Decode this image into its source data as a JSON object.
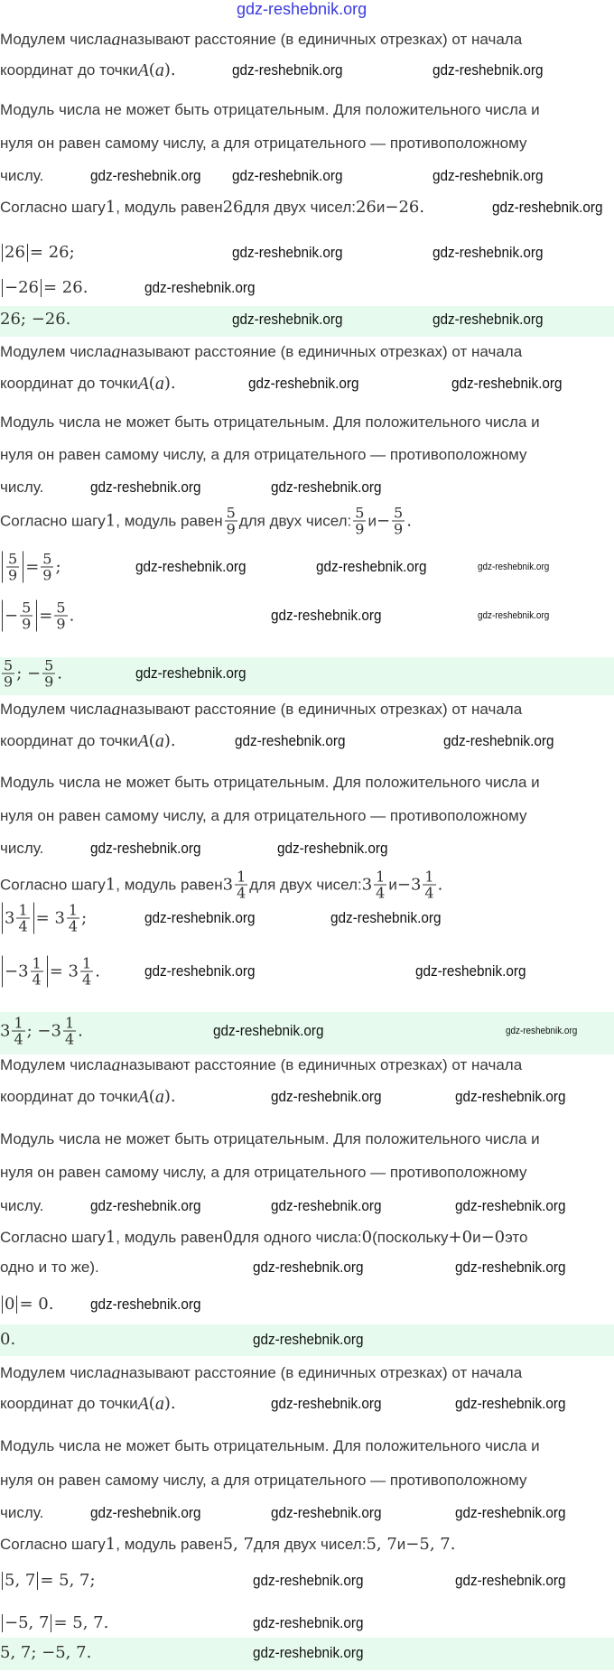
{
  "watermark": "gdz-reshebnik.org",
  "colors": {
    "answer_band": "#e6fbee",
    "top_watermark": "#3b3be0"
  },
  "intro": [
    [
      {
        "t": "Модулем числа "
      },
      {
        "mi": "a"
      },
      {
        "t": " называют расстояние (в единичных отрезках) от начала"
      }
    ],
    [
      {
        "t": "координат до точки "
      },
      {
        "mi": "A"
      },
      {
        "m": "("
      },
      {
        "mi": "a"
      },
      {
        "m": ")."
      }
    ],
    [
      {
        "t": "Модуль числа не может быть отрицательным. Для положительного числа и"
      }
    ],
    [
      {
        "t": "нуля он равен самому числу, а для отрицательного — противоположному"
      }
    ],
    [
      {
        "t": "числу."
      }
    ]
  ],
  "sections": [
    {
      "step": [
        [
          {
            "t": "Согласно шагу "
          },
          {
            "m": "1"
          },
          {
            "t": ", модуль равен "
          },
          {
            "m": "26"
          },
          {
            "t": " для двух чисел: "
          },
          {
            "m": "26"
          },
          {
            "t": " и "
          },
          {
            "m": "−26."
          }
        ]
      ],
      "equations": [
        [
          {
            "abs": [
              {
                "m": "26"
              }
            ]
          },
          {
            "m": " = 26;"
          }
        ],
        [
          {
            "abs": [
              {
                "m": "−26"
              }
            ]
          },
          {
            "m": " = 26."
          }
        ]
      ],
      "answer": [
        {
          "m": "26; −26."
        }
      ]
    },
    {
      "step": [
        [
          {
            "t": "Согласно шагу "
          },
          {
            "m": "1"
          },
          {
            "t": ", модуль равен "
          },
          {
            "f": [
              "5",
              "9"
            ]
          },
          {
            "t": " для двух чисел: "
          },
          {
            "f": [
              "5",
              "9"
            ]
          },
          {
            "t": " и "
          },
          {
            "m": "−"
          },
          {
            "f": [
              "5",
              "9"
            ]
          },
          {
            "m": "."
          }
        ]
      ],
      "equations": [
        [
          {
            "abs": [
              {
                "f": [
                  "5",
                  "9"
                ]
              }
            ]
          },
          {
            "m": " = "
          },
          {
            "f": [
              "5",
              "9"
            ]
          },
          {
            "m": ";"
          }
        ],
        [
          {
            "abs": [
              {
                "m": "−"
              },
              {
                "f": [
                  "5",
                  "9"
                ]
              }
            ]
          },
          {
            "m": " = "
          },
          {
            "f": [
              "5",
              "9"
            ]
          },
          {
            "m": "."
          }
        ]
      ],
      "answer": [
        {
          "f": [
            "5",
            "9"
          ]
        },
        {
          "m": "; −"
        },
        {
          "f": [
            "5",
            "9"
          ]
        },
        {
          "m": "."
        }
      ]
    },
    {
      "step": [
        [
          {
            "t": "Согласно шагу "
          },
          {
            "m": "1"
          },
          {
            "t": ", модуль равен "
          },
          {
            "m": "3"
          },
          {
            "f": [
              "1",
              "4"
            ]
          },
          {
            "t": " для двух чисел: "
          },
          {
            "m": "3"
          },
          {
            "f": [
              "1",
              "4"
            ]
          },
          {
            "t": " и "
          },
          {
            "m": "−3"
          },
          {
            "f": [
              "1",
              "4"
            ]
          },
          {
            "m": "."
          }
        ]
      ],
      "equations": [
        [
          {
            "abs": [
              {
                "m": "3"
              },
              {
                "f": [
                  "1",
                  "4"
                ]
              }
            ]
          },
          {
            "m": " = 3"
          },
          {
            "f": [
              "1",
              "4"
            ]
          },
          {
            "m": ";"
          }
        ],
        [
          {
            "abs": [
              {
                "m": "−3"
              },
              {
                "f": [
                  "1",
                  "4"
                ]
              }
            ]
          },
          {
            "m": " = 3"
          },
          {
            "f": [
              "1",
              "4"
            ]
          },
          {
            "m": "."
          }
        ]
      ],
      "answer": [
        {
          "m": "3"
        },
        {
          "f": [
            "1",
            "4"
          ]
        },
        {
          "m": "; −3"
        },
        {
          "f": [
            "1",
            "4"
          ]
        },
        {
          "m": "."
        }
      ]
    },
    {
      "step": [
        [
          {
            "t": "Согласно шагу "
          },
          {
            "m": "1"
          },
          {
            "t": ", модуль равен "
          },
          {
            "m": "0"
          },
          {
            "t": " для одного числа: "
          },
          {
            "m": "0"
          },
          {
            "t": " (поскольку "
          },
          {
            "m": "+0"
          },
          {
            "t": " и "
          },
          {
            "m": "−0"
          },
          {
            "t": " это"
          }
        ],
        [
          {
            "t": "одно и то же)."
          }
        ]
      ],
      "equations": [
        [
          {
            "abs": [
              {
                "m": "0"
              }
            ]
          },
          {
            "m": " = 0."
          }
        ]
      ],
      "answer": [
        {
          "m": "0."
        }
      ]
    },
    {
      "step": [
        [
          {
            "t": "Согласно шагу "
          },
          {
            "m": "1"
          },
          {
            "t": ", модуль равен "
          },
          {
            "m": "5, 7"
          },
          {
            "t": " для двух чисел: "
          },
          {
            "m": "5, 7"
          },
          {
            "t": " и "
          },
          {
            "m": "−5, 7."
          }
        ]
      ],
      "equations": [
        [
          {
            "abs": [
              {
                "m": "5, 7"
              }
            ]
          },
          {
            "m": " = 5, 7;"
          }
        ],
        [
          {
            "abs": [
              {
                "m": "−5, 7"
              }
            ]
          },
          {
            "m": " = 5, 7."
          }
        ]
      ],
      "answer": [
        {
          "m": "5, 7; −5, 7."
        }
      ]
    }
  ]
}
